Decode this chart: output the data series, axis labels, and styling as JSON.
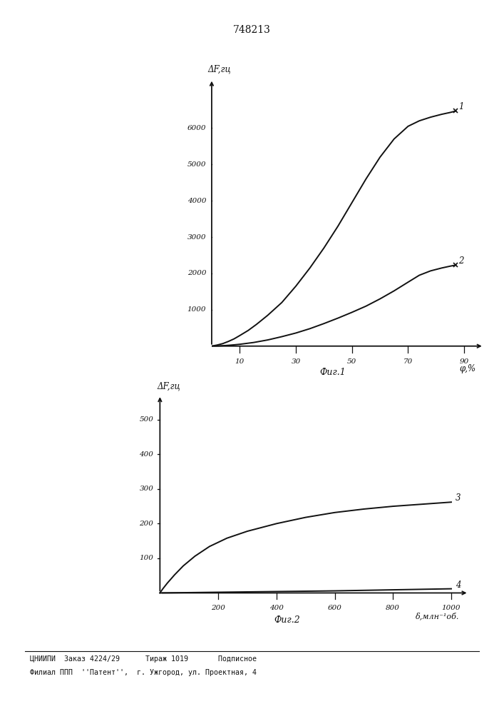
{
  "title": "748213",
  "fig1_ylabel": "ΔF,гц",
  "fig1_xlabel": "φ,%",
  "fig1_caption": "Фиг.1",
  "fig1_yticks": [
    1000,
    2000,
    3000,
    4000,
    5000,
    6000
  ],
  "fig1_xticks": [
    10,
    30,
    50,
    70,
    90
  ],
  "fig1_xlim": [
    0,
    97
  ],
  "fig1_ylim": [
    0,
    7000
  ],
  "curve1_x": [
    0,
    2,
    4,
    6,
    8,
    10,
    13,
    16,
    20,
    25,
    30,
    35,
    40,
    45,
    50,
    55,
    60,
    65,
    70,
    74,
    78,
    82,
    85,
    87
  ],
  "curve1_y": [
    0,
    30,
    70,
    130,
    200,
    290,
    430,
    600,
    850,
    1200,
    1650,
    2150,
    2700,
    3300,
    3950,
    4600,
    5200,
    5700,
    6050,
    6200,
    6300,
    6380,
    6430,
    6470
  ],
  "curve1_label": "1",
  "curve2_x": [
    0,
    2,
    4,
    6,
    8,
    10,
    15,
    20,
    25,
    30,
    35,
    40,
    45,
    50,
    55,
    60,
    65,
    70,
    74,
    78,
    82,
    85,
    87
  ],
  "curve2_y": [
    0,
    5,
    12,
    22,
    35,
    50,
    100,
    170,
    260,
    360,
    480,
    620,
    770,
    930,
    1100,
    1300,
    1520,
    1760,
    1950,
    2070,
    2150,
    2200,
    2230
  ],
  "curve2_label": "2",
  "fig2_ylabel": "ΔF,гц",
  "fig2_xlabel": "δ,млн⁻¹об.",
  "fig2_caption": "Фиг.2",
  "fig2_yticks": [
    100,
    200,
    300,
    400,
    500
  ],
  "fig2_xticks": [
    200,
    400,
    600,
    800,
    1000
  ],
  "fig2_xlim": [
    0,
    1060
  ],
  "fig2_ylim": [
    0,
    560
  ],
  "curve3_x": [
    0,
    10,
    25,
    50,
    80,
    120,
    170,
    230,
    300,
    400,
    500,
    600,
    700,
    800,
    900,
    1000
  ],
  "curve3_y": [
    0,
    12,
    28,
    52,
    78,
    106,
    134,
    158,
    178,
    200,
    218,
    232,
    242,
    250,
    256,
    262
  ],
  "curve3_label": "3",
  "curve4_x": [
    0,
    100,
    200,
    400,
    600,
    800,
    1000
  ],
  "curve4_y": [
    0,
    1,
    2,
    4,
    6,
    9,
    12
  ],
  "curve4_label": "4",
  "footer_line1": "ЦНИИПИ  Заказ 4224/29      Тираж 1019       Подписное",
  "footer_line2": "Филиал ППП  ''Патент'',  г. Ужгород, ул. Проектная, 4",
  "bg_color": "#ffffff",
  "line_color": "#111111",
  "font_color": "#111111"
}
